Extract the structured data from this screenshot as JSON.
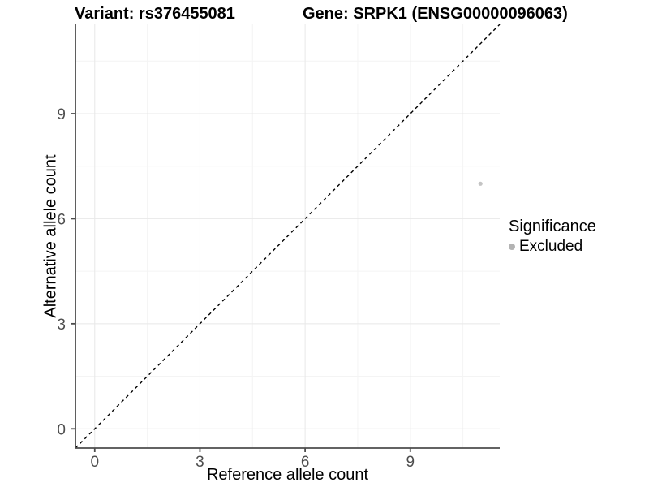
{
  "titles": {
    "variant": "Variant: rs376455081",
    "gene": "Gene: SRPK1 (ENSG00000096063)"
  },
  "axes": {
    "x_label": "Reference allele count",
    "y_label": "Alternative allele count",
    "x_tick_labels": [
      "0",
      "3",
      "6",
      "9"
    ],
    "y_tick_labels": [
      "0",
      "3",
      "6",
      "9"
    ]
  },
  "legend": {
    "title": "Significance",
    "items": [
      {
        "label": "Excluded",
        "color": "#b3b3b3"
      }
    ]
  },
  "colors": {
    "point": "#c4c4c4",
    "legend_key": "#b3b3b3",
    "axis_line": "#4d4d4d",
    "tick_label": "#4d4d4d",
    "grid_major": "#e8e8e8",
    "grid_minor": "#f4f4f4",
    "reference_line": "#000000",
    "background": "#ffffff"
  },
  "chart_data": {
    "type": "scatter",
    "title": "Variant: rs376455081 — Gene: SRPK1 (ENSG00000096063)",
    "xlabel": "Reference allele count",
    "ylabel": "Alternative allele count",
    "xlim": [
      -0.55,
      11.55
    ],
    "ylim": [
      -0.55,
      11.55
    ],
    "x_ticks": [
      0,
      3,
      6,
      9
    ],
    "y_ticks": [
      0,
      3,
      6,
      9
    ],
    "minor_ticks": [
      1.5,
      4.5,
      7.5,
      10.5
    ],
    "grid": true,
    "legend_position": "right",
    "reference_line": {
      "kind": "identity y=x",
      "style": "dashed",
      "color": "#000000"
    },
    "series": [
      {
        "name": "Excluded",
        "color": "#c4c4c4",
        "points": [
          {
            "x": 11,
            "y": 7
          }
        ]
      }
    ]
  }
}
